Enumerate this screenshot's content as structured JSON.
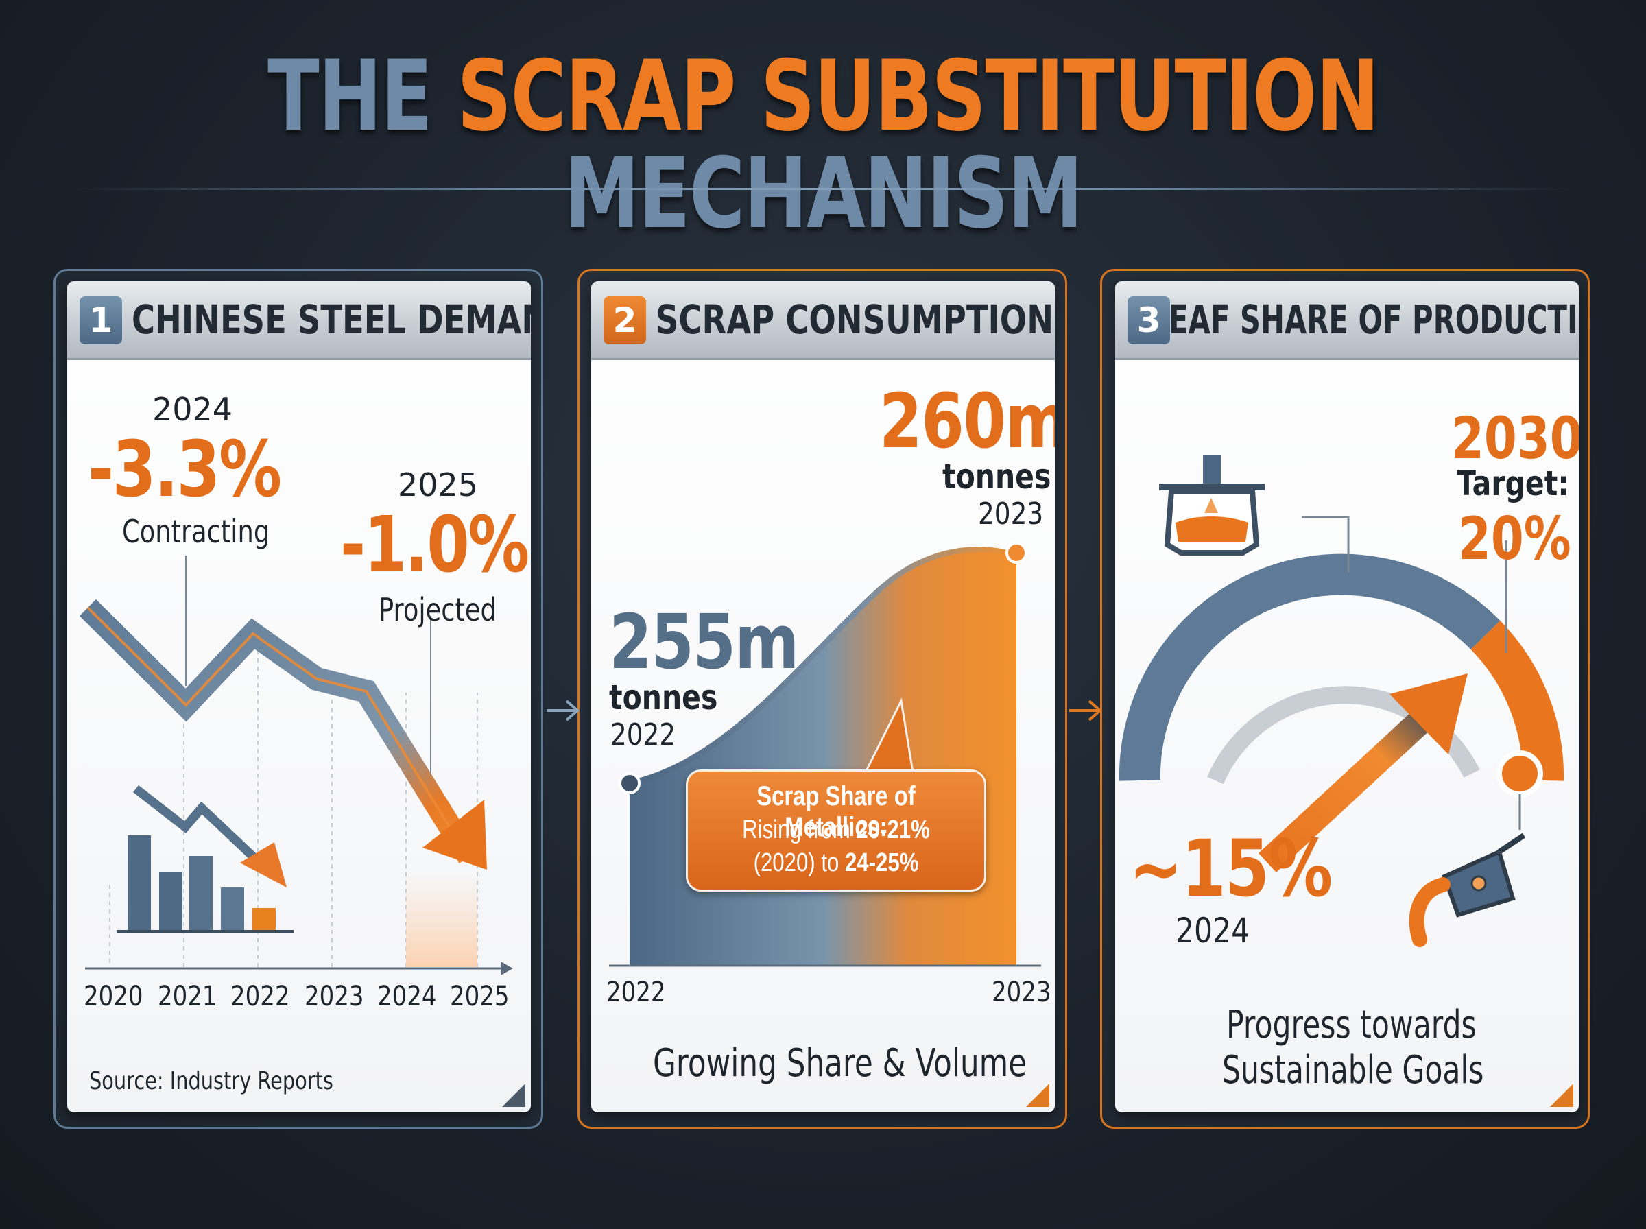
{
  "title": {
    "part1": "THE",
    "part2": "SCRAP SUBSTITUTION",
    "part3": "MECHANISM"
  },
  "colors": {
    "orange": "#ee7a22",
    "steel_blue": "#6e8aa6",
    "dark": "#1f252c"
  },
  "panel1": {
    "number": "1",
    "title": "CHINESE STEEL DEMAND",
    "stat_2024": {
      "year": "2024",
      "value": "-3.3%",
      "label": "Contracting"
    },
    "stat_2025": {
      "year": "2025",
      "value": "-1.0%",
      "label": "Projected"
    },
    "axis_years": [
      "2020",
      "2021",
      "2022",
      "2023",
      "2024",
      "2025"
    ],
    "source": "Source: Industry Reports",
    "icons": [
      "decline-line-icon",
      "bar-chart-icon",
      "down-arrow-icon"
    ]
  },
  "panel2": {
    "number": "2",
    "title": "SCRAP CONSUMPTION",
    "start": {
      "value": "255m",
      "unit": "tonnes",
      "year": "2022"
    },
    "end": {
      "value": "260m",
      "unit": "tonnes",
      "year": "2023"
    },
    "callout": {
      "line1": "Scrap Share of Metallics:",
      "line2_prefix": "Rising from ",
      "line2_value": "20-21%",
      "line3_prefix": "(2020) to ",
      "line3_value": "24-25%"
    },
    "axis_start": "2022",
    "axis_end": "2023",
    "footer": "Growing Share & Volume"
  },
  "panel3": {
    "number": "3",
    "title": "EAF SHARE OF PRODUCTION",
    "target": {
      "year": "2030",
      "label": "Target:",
      "value": "20%"
    },
    "current": {
      "value": "~15%",
      "year": "2024"
    },
    "footer_line1": "Progress towards",
    "footer_line2": "Sustainable Goals",
    "icons": [
      "electric-arc-furnace-icon",
      "ladle-pour-icon",
      "gauge-arrow-icon"
    ]
  }
}
